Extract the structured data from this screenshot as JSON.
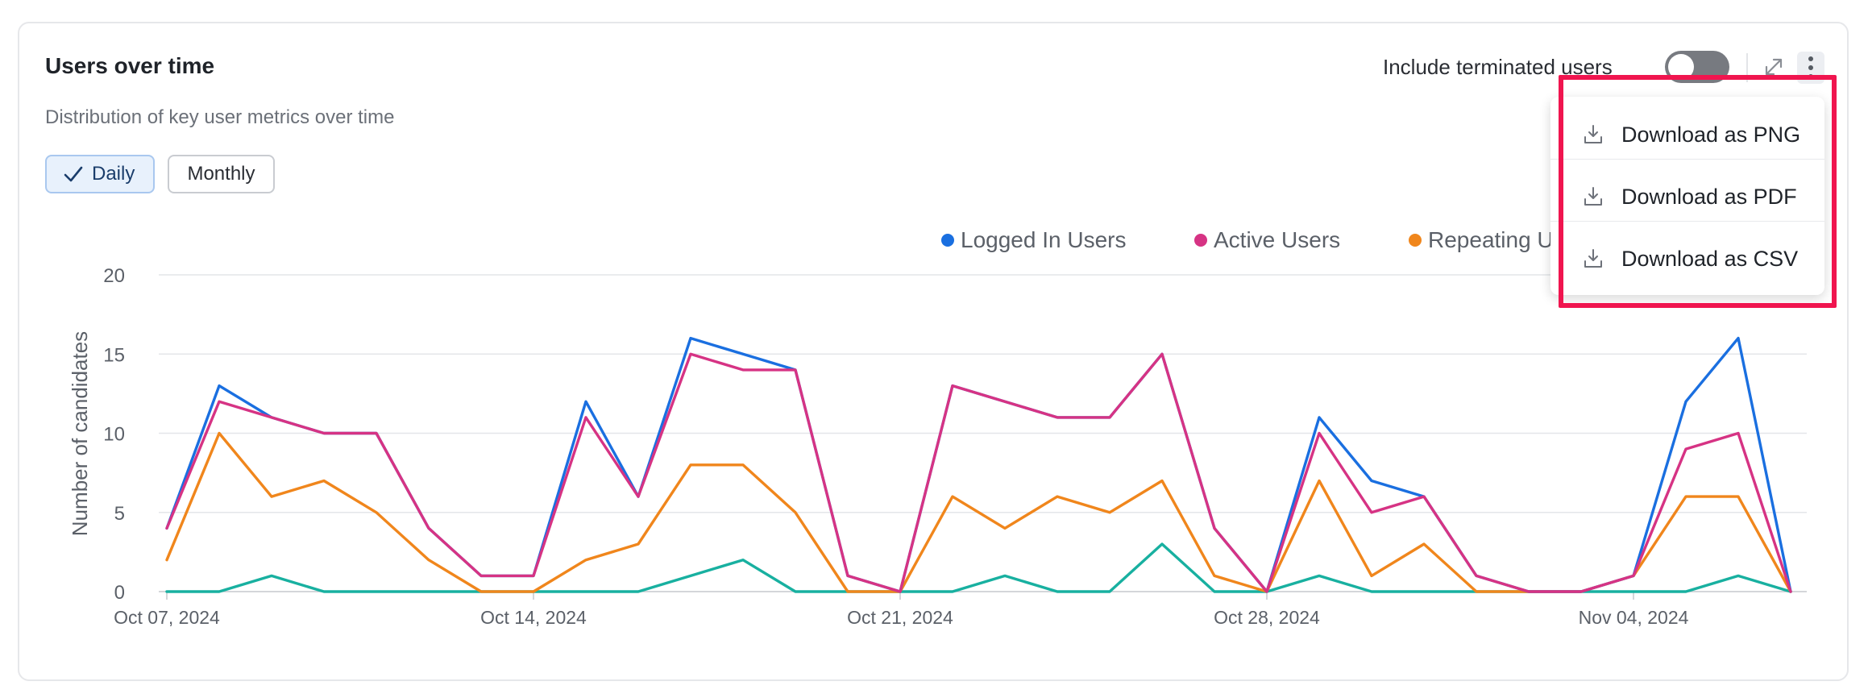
{
  "widget": {
    "title": "Users over time",
    "subtitle": "Distribution of key user metrics over time",
    "segments": {
      "daily_label": "Daily",
      "monthly_label": "Monthly",
      "selected": "Daily"
    },
    "toggle": {
      "label": "Include terminated users",
      "on": false
    },
    "icons": [
      "check-icon",
      "expand-icon",
      "more-vertical-icon",
      "download-icon"
    ]
  },
  "menu": {
    "items": [
      {
        "label": "Download as PNG",
        "icon": "download-icon"
      },
      {
        "label": "Download as PDF",
        "icon": "download-icon"
      },
      {
        "label": "Download as CSV",
        "icon": "download-icon"
      }
    ]
  },
  "annotation": {
    "color": "#f0154f"
  },
  "chart_data": {
    "type": "line",
    "xlabel": "",
    "ylabel": "Number of candidates",
    "ylim": [
      0,
      20
    ],
    "yticks": [
      0,
      5,
      10,
      15,
      20
    ],
    "grid": true,
    "legend_position": "top",
    "x_tick_labels": [
      "Oct 07, 2024",
      "Oct 14, 2024",
      "Oct 21, 2024",
      "Oct 28, 2024",
      "Nov 04, 2024"
    ],
    "x": [
      "2024-10-07",
      "2024-10-08",
      "2024-10-09",
      "2024-10-10",
      "2024-10-11",
      "2024-10-12",
      "2024-10-13",
      "2024-10-14",
      "2024-10-15",
      "2024-10-16",
      "2024-10-17",
      "2024-10-18",
      "2024-10-19",
      "2024-10-20",
      "2024-10-21",
      "2024-10-22",
      "2024-10-23",
      "2024-10-24",
      "2024-10-25",
      "2024-10-26",
      "2024-10-27",
      "2024-10-28",
      "2024-10-29",
      "2024-10-30",
      "2024-10-31",
      "2024-11-01",
      "2024-11-02",
      "2024-11-03",
      "2024-11-04",
      "2024-11-05",
      "2024-11-06",
      "2024-11-07"
    ],
    "series": [
      {
        "name": "Logged In Users",
        "color": "#1a6fe0",
        "values": [
          4,
          13,
          11,
          10,
          10,
          4,
          1,
          1,
          12,
          6,
          16,
          15,
          14,
          1,
          0,
          13,
          12,
          11,
          11,
          15,
          4,
          0,
          11,
          7,
          6,
          1,
          0,
          0,
          1,
          12,
          16,
          0
        ]
      },
      {
        "name": "Active Users",
        "color": "#d63384",
        "values": [
          4,
          12,
          11,
          10,
          10,
          4,
          1,
          1,
          11,
          6,
          15,
          14,
          14,
          1,
          0,
          13,
          12,
          11,
          11,
          15,
          4,
          0,
          10,
          5,
          6,
          1,
          0,
          0,
          1,
          9,
          10,
          0
        ]
      },
      {
        "name": "Repeating U",
        "color": "#f0861c",
        "values": [
          2,
          10,
          6,
          7,
          5,
          2,
          0,
          0,
          2,
          3,
          8,
          8,
          5,
          0,
          0,
          6,
          4,
          6,
          5,
          7,
          1,
          0,
          7,
          1,
          3,
          0,
          0,
          0,
          1,
          6,
          6,
          0
        ]
      },
      {
        "name": "",
        "color": "#18b0a0",
        "values": [
          0,
          0,
          1,
          0,
          0,
          0,
          0,
          0,
          0,
          0,
          1,
          2,
          0,
          0,
          0,
          0,
          1,
          0,
          0,
          3,
          0,
          0,
          1,
          0,
          0,
          0,
          0,
          0,
          0,
          0,
          1,
          0
        ]
      }
    ]
  }
}
